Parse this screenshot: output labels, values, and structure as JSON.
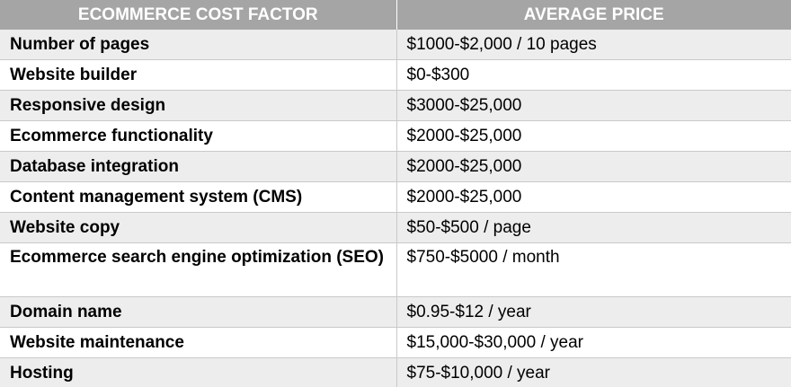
{
  "table": {
    "headers": [
      "ECOMMERCE COST FACTOR",
      "AVERAGE PRICE"
    ],
    "rows": [
      {
        "factor": "Number of pages",
        "price": "$1000-$2,000 / 10 pages"
      },
      {
        "factor": "Website builder",
        "price": "$0-$300"
      },
      {
        "factor": "Responsive design",
        "price": "$3000-$25,000"
      },
      {
        "factor": "Ecommerce functionality",
        "price": "$2000-$25,000"
      },
      {
        "factor": "Database integration",
        "price": "$2000-$25,000"
      },
      {
        "factor": "Content management system (CMS)",
        "price": "$2000-$25,000"
      },
      {
        "factor": "Website copy",
        "price": "$50-$500 / page"
      },
      {
        "factor": "Ecommerce search engine optimization (SEO)",
        "price": "$750-$5000 / month"
      },
      {
        "factor": "Domain name",
        "price": "$0.95-$12 / year"
      },
      {
        "factor": "Website maintenance",
        "price": "$15,000-$30,000 / year"
      },
      {
        "factor": "Hosting",
        "price": "$75-$10,000 / year"
      }
    ]
  },
  "colors": {
    "header_bg": "#a5a5a5",
    "header_text": "#ffffff",
    "shaded_row_bg": "#ededed",
    "row_bg": "#ffffff",
    "border": "#c9c9c9"
  }
}
